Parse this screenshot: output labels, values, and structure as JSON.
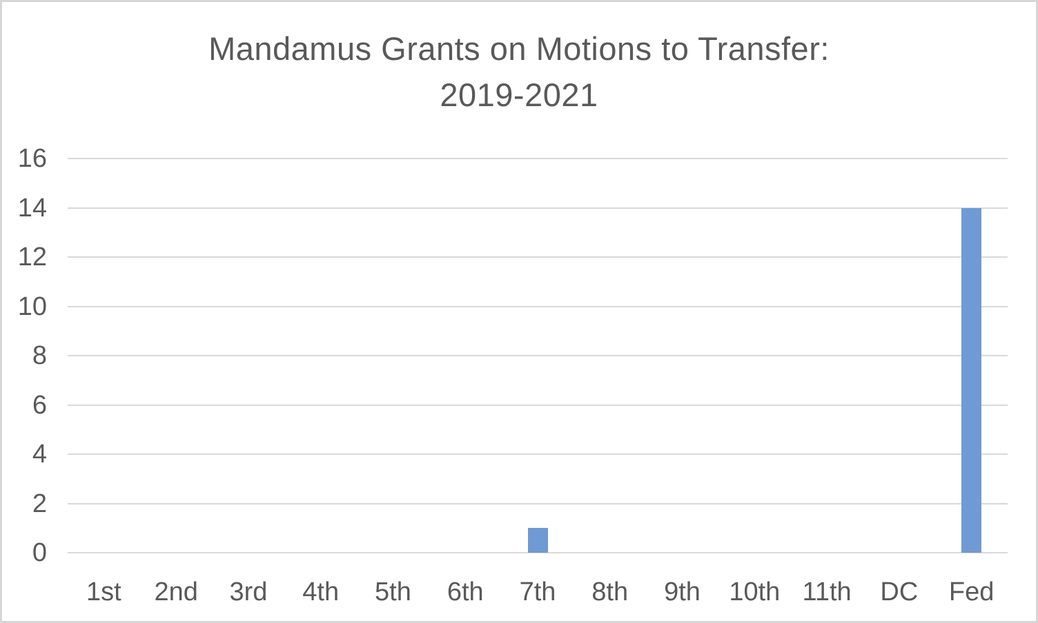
{
  "chart_data": {
    "type": "bar",
    "title": "Mandamus Grants on Motions to Transfer: 2019-2021",
    "title_lines": [
      "Mandamus Grants on Motions to Transfer:",
      "2019-2021"
    ],
    "categories": [
      "1st",
      "2nd",
      "3rd",
      "4th",
      "5th",
      "6th",
      "7th",
      "8th",
      "9th",
      "10th",
      "11th",
      "DC",
      "Fed"
    ],
    "values": [
      0,
      0,
      0,
      0,
      0,
      0,
      1,
      0,
      0,
      0,
      0,
      0,
      14
    ],
    "xlabel": "",
    "ylabel": "",
    "ylim": [
      0,
      16
    ],
    "yticks": [
      0,
      2,
      4,
      6,
      8,
      10,
      12,
      14,
      16
    ],
    "grid": "horizontal-on",
    "legend": "none",
    "colors": {
      "bar_fill": "#6f9ad3",
      "gridline": "#d9d9d9",
      "axis_line": "#d9d9d9",
      "text": "#595959",
      "background": "#ffffff",
      "border": "#d6d6d6"
    }
  }
}
